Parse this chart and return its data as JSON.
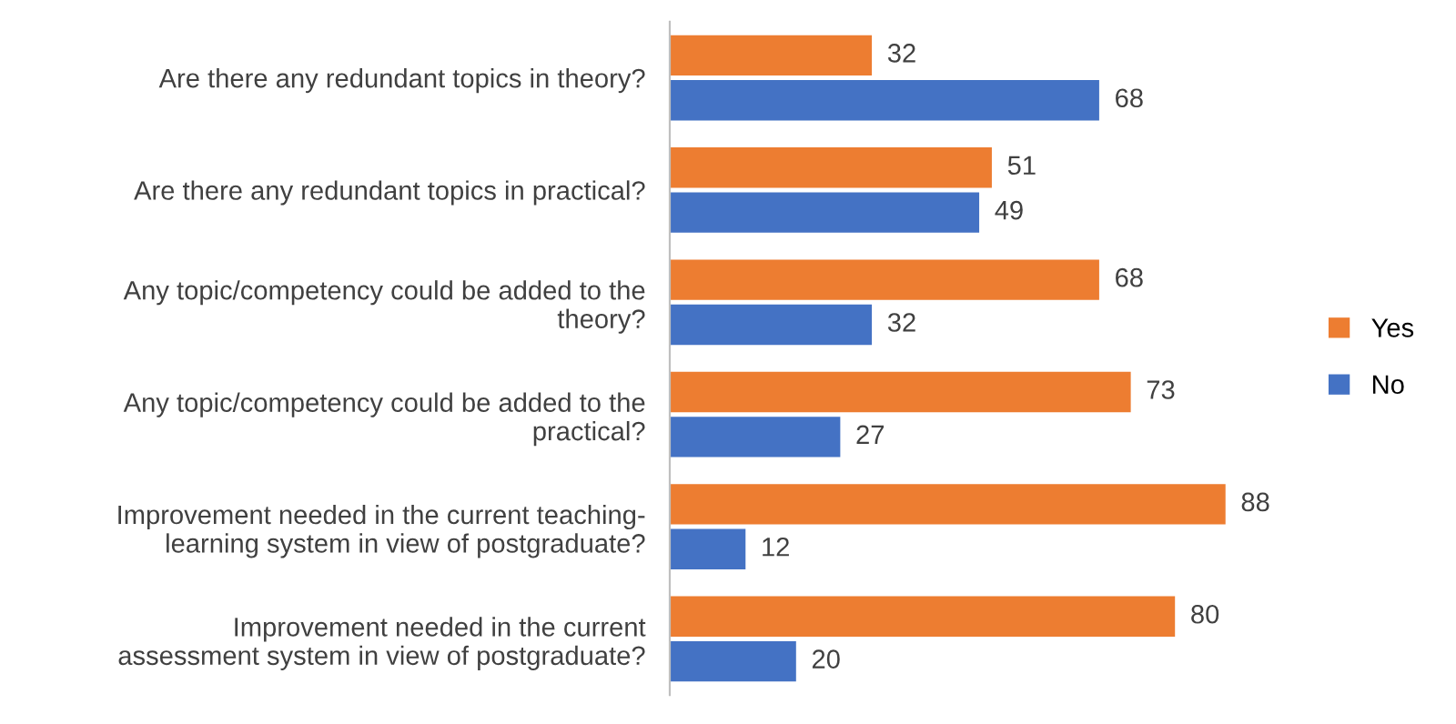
{
  "chart_data": {
    "type": "bar",
    "orientation": "horizontal",
    "categories": [
      "Are there any redundant topics in theory?",
      "Are there any redundant topics in practical?",
      "Any topic/competency could be added to the\ntheory?",
      "Any topic/competency could be added to the\npractical?",
      "Improvement needed in the current teaching-\nlearning system in view of postgraduate?",
      "Improvement needed in the current\nassessment system in view of postgraduate?"
    ],
    "series": [
      {
        "name": "Yes",
        "color": "#ed7d31",
        "values": [
          32,
          51,
          68,
          73,
          88,
          80
        ]
      },
      {
        "name": "No",
        "color": "#4472c4",
        "values": [
          68,
          49,
          32,
          27,
          12,
          20
        ]
      }
    ],
    "tick_labels": "y",
    "data_labels": true,
    "legend": "right",
    "grid": false
  }
}
